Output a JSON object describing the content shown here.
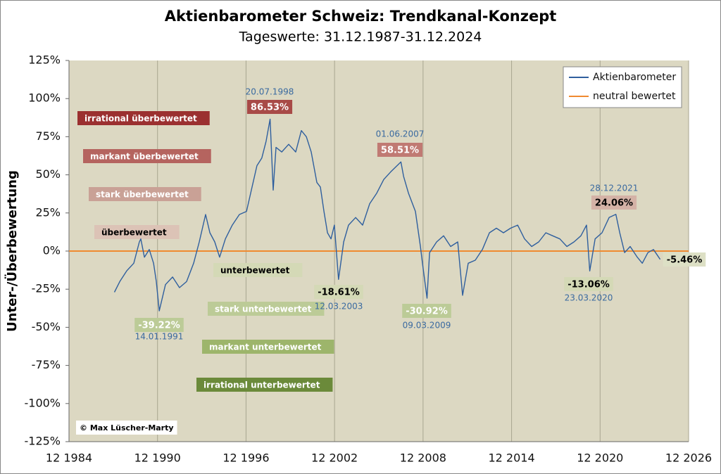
{
  "chart_data": {
    "type": "line",
    "title": "Aktienbarometer  Schweiz: Trendkanal-Konzept",
    "subtitle": "Tageswerte: 31.12.1987-31.12.2024",
    "y_label": "Unter-/Überbewertung",
    "copyright": "© Max Lüscher-Marty",
    "legend": "top-right",
    "grid": true,
    "xlim": [
      1984.92,
      2026.92
    ],
    "xticks": [
      {
        "value": 1984.92,
        "label": "12 1984"
      },
      {
        "value": 1990.92,
        "label": "12 1990"
      },
      {
        "value": 1996.92,
        "label": "12 1996"
      },
      {
        "value": 2002.92,
        "label": "12 2002"
      },
      {
        "value": 2008.92,
        "label": "12 2008"
      },
      {
        "value": 2014.92,
        "label": "12 2014"
      },
      {
        "value": 2020.92,
        "label": "12 2020"
      },
      {
        "value": 2026.92,
        "label": "12 2026"
      }
    ],
    "ylim": [
      -125,
      125
    ],
    "yticks": [
      {
        "value": 125,
        "label": "125%"
      },
      {
        "value": 100,
        "label": "100%"
      },
      {
        "value": 75,
        "label": "75%"
      },
      {
        "value": 50,
        "label": "50%"
      },
      {
        "value": 25,
        "label": "25%"
      },
      {
        "value": 0,
        "label": "0%"
      },
      {
        "value": -25,
        "label": "-25%"
      },
      {
        "value": -50,
        "label": "-50%"
      },
      {
        "value": -75,
        "label": "-75%"
      },
      {
        "value": -100,
        "label": "-100%"
      },
      {
        "value": -125,
        "label": "-125%"
      }
    ],
    "series": [
      {
        "name": "Aktienbarometer",
        "color": "#2f5f9e",
        "x": [
          1988.0,
          1988.36,
          1988.83,
          1989.31,
          1989.69,
          1989.79,
          1990.03,
          1990.36,
          1990.65,
          1990.84,
          1991.04,
          1991.46,
          1991.94,
          1992.41,
          1992.89,
          1993.37,
          1993.75,
          1994.18,
          1994.47,
          1994.8,
          1995.13,
          1995.52,
          1995.99,
          1996.47,
          1996.95,
          1997.33,
          1997.66,
          1997.99,
          1998.28,
          1998.55,
          1998.76,
          1998.95,
          1999.34,
          1999.81,
          2000.29,
          2000.67,
          2001.01,
          2001.34,
          2001.72,
          2001.96,
          2002.2,
          2002.44,
          2002.68,
          2002.91,
          2003.19,
          2003.54,
          2003.87,
          2004.35,
          2004.82,
          2005.3,
          2005.78,
          2006.26,
          2006.73,
          2007.42,
          2007.6,
          2007.93,
          2008.4,
          2008.74,
          2008.88,
          2009.19,
          2009.36,
          2009.84,
          2010.31,
          2010.79,
          2011.27,
          2011.6,
          2011.98,
          2012.46,
          2012.94,
          2013.42,
          2013.89,
          2014.37,
          2014.85,
          2015.33,
          2015.8,
          2016.28,
          2016.76,
          2017.24,
          2017.71,
          2018.19,
          2018.67,
          2019.15,
          2019.62,
          2020.0,
          2020.22,
          2020.58,
          2021.05,
          2021.53,
          2021.99,
          2022.25,
          2022.58,
          2022.96,
          2023.44,
          2023.78,
          2024.16,
          2024.54,
          2024.99
        ],
        "values": [
          -27,
          -20,
          -13,
          -8,
          6,
          8,
          -4,
          1,
          -8,
          -20,
          -39.22,
          -22,
          -17,
          -24,
          -20,
          -8,
          6,
          24,
          12,
          6,
          -4,
          8,
          17,
          24,
          26,
          42,
          56,
          61,
          72,
          86.53,
          40,
          68,
          65,
          70,
          65,
          79,
          75,
          65,
          45,
          42,
          26,
          12,
          8,
          17,
          -18.61,
          6,
          17,
          22,
          17,
          31,
          38,
          47,
          52,
          58.51,
          49,
          38,
          26,
          3,
          -8,
          -30.92,
          -1,
          6,
          10,
          3,
          6,
          -29,
          -8,
          -6,
          1,
          12,
          15,
          12,
          15,
          17,
          8,
          3,
          6,
          12,
          10,
          8,
          3,
          6,
          10,
          17,
          -13.06,
          8,
          12,
          22,
          24.06,
          12,
          -1,
          3,
          -4,
          -8,
          -1,
          1,
          -5.46
        ]
      },
      {
        "name": "neutral bewertet",
        "color": "#f08a30",
        "x": [
          1984.92,
          2026.92
        ],
        "values": [
          0,
          0
        ]
      }
    ],
    "zones": [
      {
        "label": "irrational überbewertet",
        "color": "#9b3030",
        "text_color": "#ffffff"
      },
      {
        "label": "markant überbewertet",
        "color": "#b5645f",
        "text_color": "#ffffff"
      },
      {
        "label": "stark überbewertet",
        "color": "#c9a196",
        "text_color": "#ffffff"
      },
      {
        "label": "überbewertet",
        "color": "#dcc3b6",
        "text_color": "#000000"
      },
      {
        "label": "unterbewertet",
        "color": "#d4d9b6",
        "text_color": "#000000"
      },
      {
        "label": "stark unterbewertet",
        "color": "#bccb97",
        "text_color": "#ffffff"
      },
      {
        "label": "markant unterbewertet",
        "color": "#9db56b",
        "text_color": "#ffffff"
      },
      {
        "label": "irrational unterbewertet",
        "color": "#6b8a3a",
        "text_color": "#ffffff"
      }
    ],
    "annotations": [
      {
        "date": "20.07.1998",
        "text": "86.53%"
      },
      {
        "date": "01.06.2007",
        "text": "58.51%"
      },
      {
        "date": "28.12.2021",
        "text": "24.06%"
      },
      {
        "date": "14.01.1991",
        "text": "-39.22%"
      },
      {
        "date": "12.03.2003",
        "text": "-18.61%"
      },
      {
        "date": "09.03.2009",
        "text": "-30.92%"
      },
      {
        "date": "23.03.2020",
        "text": "-13.06%"
      },
      {
        "text": "-5.46%"
      }
    ]
  }
}
